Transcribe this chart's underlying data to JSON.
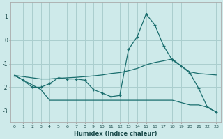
{
  "xlabel": "Humidex (Indice chaleur)",
  "background_color": "#ceeaea",
  "grid_color": "#aacece",
  "line_color": "#1a6e6e",
  "xlim": [
    -0.5,
    23.5
  ],
  "ylim": [
    -3.5,
    1.6
  ],
  "yticks": [
    -3,
    -2,
    -1,
    0,
    1
  ],
  "xticks": [
    0,
    1,
    2,
    3,
    4,
    5,
    6,
    7,
    8,
    9,
    10,
    11,
    12,
    13,
    14,
    15,
    16,
    17,
    18,
    19,
    20,
    21,
    22,
    23
  ],
  "line1_x": [
    0,
    1,
    2,
    3,
    4,
    5,
    6,
    7,
    8,
    9,
    10,
    11,
    12,
    13,
    14,
    15,
    16,
    17,
    18,
    19,
    20,
    21,
    22,
    23
  ],
  "line1_y": [
    -1.5,
    -1.7,
    -2.0,
    -2.0,
    -1.85,
    -1.6,
    -1.65,
    -1.65,
    -1.7,
    -2.1,
    -2.25,
    -2.4,
    -2.35,
    -0.4,
    0.15,
    1.1,
    0.65,
    -0.25,
    -0.85,
    -1.1,
    -1.4,
    -2.05,
    -2.85,
    -3.05
  ],
  "line2_x": [
    0,
    1,
    2,
    3,
    4,
    5,
    6,
    7,
    8,
    9,
    10,
    11,
    12,
    13,
    14,
    15,
    16,
    17,
    18,
    19,
    20,
    21,
    22,
    23
  ],
  "line2_y": [
    -1.5,
    -1.55,
    -1.6,
    -1.65,
    -1.65,
    -1.62,
    -1.6,
    -1.58,
    -1.55,
    -1.52,
    -1.48,
    -1.42,
    -1.38,
    -1.3,
    -1.2,
    -1.05,
    -0.95,
    -0.88,
    -0.8,
    -1.1,
    -1.35,
    -1.42,
    -1.45,
    -1.48
  ],
  "line3_x": [
    0,
    1,
    2,
    3,
    4,
    5,
    6,
    7,
    8,
    9,
    10,
    11,
    12,
    13,
    14,
    15,
    16,
    17,
    18,
    19,
    20,
    21,
    22,
    23
  ],
  "line3_y": [
    -1.5,
    -1.7,
    -1.9,
    -2.1,
    -2.55,
    -2.55,
    -2.55,
    -2.55,
    -2.55,
    -2.55,
    -2.55,
    -2.55,
    -2.55,
    -2.55,
    -2.55,
    -2.55,
    -2.55,
    -2.55,
    -2.55,
    -2.65,
    -2.75,
    -2.75,
    -2.85,
    -3.05
  ]
}
